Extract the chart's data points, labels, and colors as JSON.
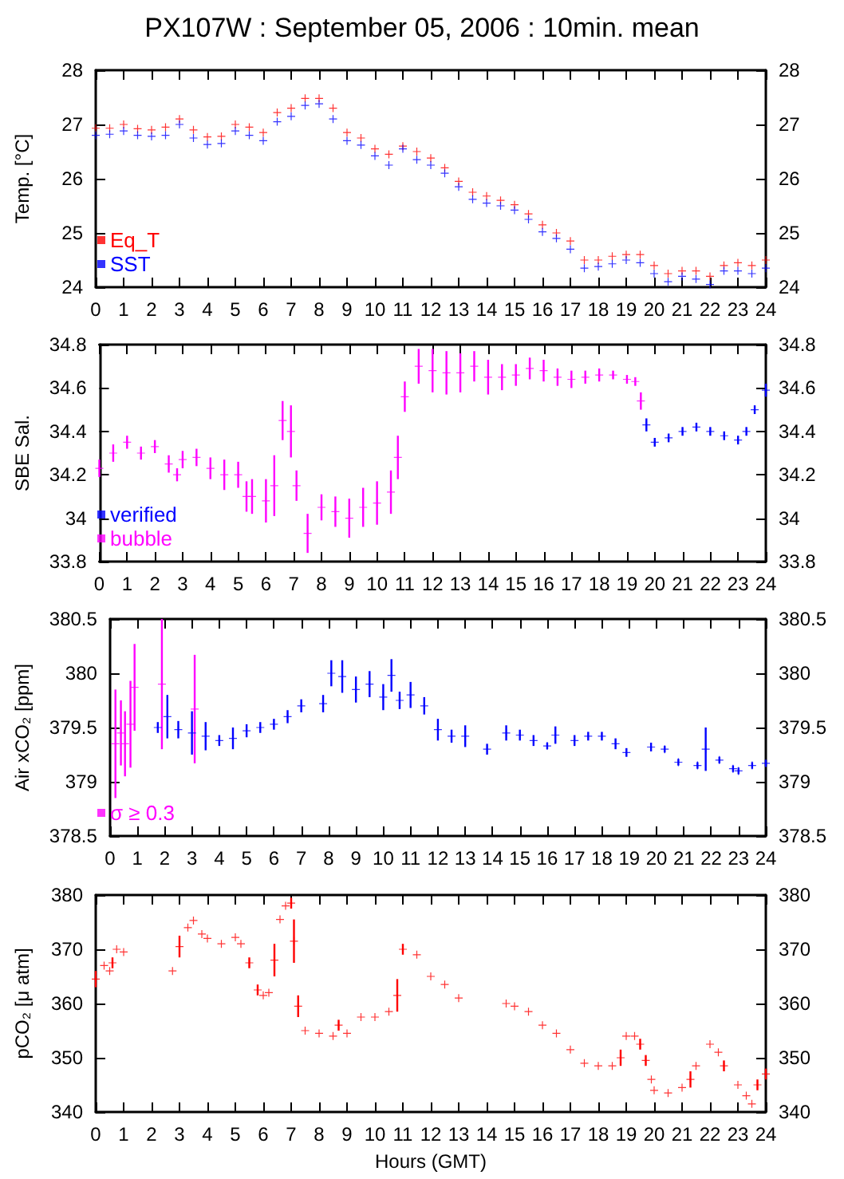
{
  "chart_data": [
    {
      "type": "scatter",
      "title": "PX107W : September 05, 2006 : 10min. mean",
      "ylabel": "Temp. [°C]",
      "marker": "cross",
      "legend": "bottom left",
      "xlim": [
        0,
        24
      ],
      "xticks": [
        0,
        1,
        2,
        3,
        4,
        5,
        6,
        7,
        8,
        9,
        10,
        11,
        12,
        13,
        14,
        15,
        16,
        17,
        18,
        19,
        20,
        21,
        22,
        23,
        24
      ],
      "ylim": [
        24,
        28
      ],
      "yticks": [
        24,
        25,
        26,
        27,
        28
      ],
      "y2lim": [
        24,
        28
      ],
      "y2ticks": [
        24,
        25,
        26,
        27,
        28
      ],
      "x": [
        0,
        0.5,
        1,
        1.5,
        2,
        2.5,
        3,
        3.5,
        4,
        4.5,
        5,
        5.5,
        6,
        6.5,
        7,
        7.5,
        8,
        8.5,
        9,
        9.5,
        10,
        10.5,
        11,
        11.5,
        12,
        12.5,
        13,
        13.5,
        14,
        14.5,
        15,
        15.5,
        16,
        16.5,
        17,
        17.5,
        18,
        18.5,
        19,
        19.5,
        20,
        20.5,
        21,
        21.5,
        22,
        22.5,
        23,
        23.5,
        24
      ],
      "series": [
        {
          "name": "Eq_T",
          "color": "#ff0000",
          "values": [
            26.93,
            26.93,
            27.0,
            26.92,
            26.9,
            26.95,
            27.1,
            26.9,
            26.77,
            26.78,
            27.0,
            26.95,
            26.85,
            27.22,
            27.3,
            27.48,
            27.48,
            27.3,
            26.85,
            26.75,
            26.55,
            26.45,
            26.6,
            26.5,
            26.38,
            26.2,
            25.95,
            25.75,
            25.68,
            25.6,
            25.52,
            25.35,
            25.15,
            25.0,
            24.85,
            24.5,
            24.5,
            24.57,
            24.6,
            24.6,
            24.4,
            24.25,
            24.3,
            24.3,
            24.2,
            24.4,
            24.45,
            24.4,
            24.5
          ]
        },
        {
          "name": "SST",
          "color": "#0000ff",
          "values": [
            26.8,
            26.82,
            26.88,
            26.8,
            26.78,
            26.8,
            27.0,
            26.75,
            26.63,
            26.65,
            26.88,
            26.8,
            26.7,
            27.05,
            27.15,
            27.35,
            27.38,
            27.1,
            26.7,
            26.62,
            26.42,
            26.25,
            26.55,
            26.35,
            26.25,
            26.1,
            25.85,
            25.62,
            25.55,
            25.5,
            25.42,
            25.25,
            25.02,
            24.9,
            24.7,
            24.35,
            24.38,
            24.43,
            24.5,
            24.45,
            24.25,
            24.1,
            24.2,
            24.15,
            24.05,
            24.3,
            24.3,
            24.25,
            24.35
          ]
        }
      ]
    },
    {
      "type": "scatter",
      "ylabel": "SBE Sal.",
      "marker": "cross",
      "legend": "bottom left",
      "xlim": [
        0,
        24
      ],
      "xticks": [
        0,
        1,
        2,
        3,
        4,
        5,
        6,
        7,
        8,
        9,
        10,
        11,
        12,
        13,
        14,
        15,
        16,
        17,
        18,
        19,
        20,
        21,
        22,
        23,
        24
      ],
      "ylim": [
        33.8,
        34.8
      ],
      "yticks": [
        33.8,
        34,
        34.2,
        34.4,
        34.6,
        34.8
      ],
      "y2lim": [
        33.8,
        34.8
      ],
      "y2ticks": [
        33.8,
        34,
        34.2,
        34.4,
        34.6,
        34.8
      ],
      "series": [
        {
          "name": "verified",
          "color": "#0000ff",
          "x": [
            19.7,
            20,
            20.5,
            21,
            21.5,
            22,
            22.5,
            23,
            23.3,
            23.6,
            24
          ],
          "values": [
            34.43,
            34.35,
            34.37,
            34.4,
            34.42,
            34.4,
            34.38,
            34.36,
            34.4,
            34.5,
            34.59
          ],
          "errors": [
            0.03,
            0.02,
            0.02,
            0.02,
            0.02,
            0.02,
            0.02,
            0.02,
            0.02,
            0.02,
            0.03
          ]
        },
        {
          "name": "bubble",
          "color": "#ff00ff",
          "x": [
            0,
            0.5,
            1,
            1.5,
            2,
            2.5,
            2.8,
            3,
            3.5,
            4,
            4.5,
            5,
            5.3,
            5.5,
            6,
            6.3,
            6.6,
            6.9,
            7.1,
            7.5,
            8,
            8.5,
            9,
            9.5,
            10,
            10.5,
            10.75,
            11,
            11.5,
            12,
            12.5,
            13,
            13.5,
            14,
            14.5,
            15,
            15.5,
            16,
            16.5,
            17,
            17.5,
            18,
            18.5,
            19,
            19.3,
            19.5
          ],
          "values": [
            34.23,
            34.3,
            34.35,
            34.3,
            34.33,
            34.25,
            34.2,
            34.27,
            34.28,
            34.23,
            34.2,
            34.2,
            34.1,
            34.1,
            34.08,
            34.15,
            34.45,
            34.4,
            34.15,
            33.93,
            34.05,
            34.03,
            34.0,
            34.05,
            34.07,
            34.12,
            34.28,
            34.56,
            34.7,
            34.68,
            34.67,
            34.67,
            34.7,
            34.65,
            34.65,
            34.66,
            34.69,
            34.68,
            34.65,
            34.64,
            34.65,
            34.66,
            34.66,
            34.64,
            34.63,
            34.54
          ],
          "errors": [
            0.04,
            0.04,
            0.03,
            0.03,
            0.03,
            0.04,
            0.03,
            0.04,
            0.04,
            0.05,
            0.07,
            0.06,
            0.07,
            0.08,
            0.1,
            0.14,
            0.09,
            0.12,
            0.07,
            0.09,
            0.06,
            0.07,
            0.09,
            0.09,
            0.1,
            0.1,
            0.1,
            0.07,
            0.08,
            0.1,
            0.1,
            0.09,
            0.07,
            0.08,
            0.06,
            0.05,
            0.05,
            0.05,
            0.04,
            0.04,
            0.03,
            0.03,
            0.02,
            0.02,
            0.02,
            0.04
          ]
        }
      ]
    },
    {
      "type": "scatter",
      "ylabel": "Air xCO₂ [ppm]",
      "marker": "cross",
      "legend": "bottom left",
      "xlim": [
        0,
        24
      ],
      "xticks": [
        0,
        1,
        2,
        3,
        4,
        5,
        6,
        7,
        8,
        9,
        10,
        11,
        12,
        13,
        14,
        15,
        16,
        17,
        18,
        19,
        20,
        21,
        22,
        23,
        24
      ],
      "ylim": [
        378.5,
        380.5
      ],
      "yticks": [
        378.5,
        379,
        379.5,
        380,
        380.5
      ],
      "y2lim": [
        378.5,
        380.5
      ],
      "y2ticks": [
        378.5,
        379,
        379.5,
        380,
        380.5
      ],
      "series": [
        {
          "color": "#0000ff",
          "x": [
            1.75,
            2.1,
            2.5,
            3,
            3.5,
            4,
            4.5,
            5,
            5.5,
            6,
            6.5,
            7,
            7.8,
            8.1,
            8.5,
            9,
            9.5,
            10,
            10.3,
            10.6,
            11,
            11.5,
            12,
            12.5,
            13,
            13.8,
            14.5,
            15,
            15.5,
            16,
            16.3,
            17,
            17.5,
            18,
            18.5,
            18.9,
            19.8,
            20.3,
            20.8,
            21.5,
            21.8,
            22.3,
            22.8,
            23,
            23.5,
            24
          ],
          "values": [
            379.5,
            379.6,
            379.48,
            379.45,
            379.42,
            379.38,
            379.4,
            379.47,
            379.5,
            379.53,
            379.6,
            379.7,
            379.72,
            380.0,
            379.97,
            379.85,
            379.9,
            379.78,
            379.98,
            379.75,
            379.8,
            379.7,
            379.48,
            379.42,
            379.42,
            379.3,
            379.45,
            379.43,
            379.38,
            379.33,
            379.43,
            379.38,
            379.42,
            379.42,
            379.35,
            379.27,
            379.32,
            379.3,
            379.18,
            379.15,
            379.3,
            379.2,
            379.12,
            379.1,
            379.15,
            379.17
          ],
          "errors": [
            0.05,
            0.2,
            0.08,
            0.2,
            0.13,
            0.05,
            0.1,
            0.06,
            0.05,
            0.05,
            0.06,
            0.06,
            0.08,
            0.12,
            0.15,
            0.12,
            0.12,
            0.12,
            0.15,
            0.08,
            0.12,
            0.08,
            0.1,
            0.06,
            0.1,
            0.05,
            0.07,
            0.05,
            0.05,
            0.03,
            0.08,
            0.05,
            0.04,
            0.04,
            0.05,
            0.04,
            0.04,
            0.03,
            0.03,
            0.03,
            0.2,
            0.03,
            0.03,
            0.03,
            0.03,
            0.03
          ]
        },
        {
          "name": "σ ≥ 0.3",
          "color": "#ff00ff",
          "x": [
            0.2,
            0.4,
            0.55,
            0.75,
            0.9,
            1.9,
            3.1
          ],
          "values": [
            379.35,
            379.45,
            379.35,
            379.53,
            379.87,
            379.9,
            379.67
          ],
          "errors": [
            0.5,
            0.3,
            0.3,
            0.4,
            0.4,
            0.6,
            0.5
          ]
        }
      ]
    },
    {
      "type": "scatter",
      "ylabel": "pCO₂ [μ atm]",
      "xlabel": "Hours (GMT)",
      "marker": "cross",
      "xlim": [
        0,
        24
      ],
      "xticks": [
        0,
        1,
        2,
        3,
        4,
        5,
        6,
        7,
        8,
        9,
        10,
        11,
        12,
        13,
        14,
        15,
        16,
        17,
        18,
        19,
        20,
        21,
        22,
        23,
        24
      ],
      "ylim": [
        340,
        380
      ],
      "yticks": [
        340,
        350,
        360,
        370,
        380
      ],
      "y2lim": [
        340,
        380
      ],
      "y2ticks": [
        340,
        350,
        360,
        370,
        380
      ],
      "series": [
        {
          "color": "#ff0000",
          "x": [
            0,
            0.3,
            0.5,
            0.6,
            0.75,
            1,
            2.75,
            3,
            3.3,
            3.5,
            3.8,
            4,
            4.5,
            5,
            5.2,
            5.5,
            5.8,
            6,
            6.2,
            6.4,
            6.6,
            6.8,
            7,
            7.1,
            7.25,
            7.5,
            8,
            8.5,
            8.7,
            9,
            9.5,
            10,
            10.5,
            10.8,
            11,
            11.5,
            12,
            12.5,
            13,
            14.7,
            15,
            15.5,
            16,
            16.5,
            17,
            17.5,
            18,
            18.5,
            18.8,
            19,
            19.3,
            19.5,
            19.7,
            19.9,
            20,
            20.5,
            21,
            21.3,
            21.5,
            22,
            22.3,
            22.5,
            23,
            23.3,
            23.5,
            23.7,
            24
          ],
          "values": [
            364.5,
            367,
            366,
            367.5,
            370,
            369.5,
            366,
            370.5,
            374,
            375.3,
            372.8,
            372,
            371,
            372.2,
            371,
            367.5,
            362.5,
            361.5,
            362,
            368,
            375.5,
            378,
            378.5,
            371.5,
            359.5,
            355,
            354.5,
            354,
            356,
            354.5,
            357.5,
            357.5,
            358.5,
            361.5,
            370,
            369,
            365,
            363.5,
            361,
            360,
            359.5,
            358.5,
            356,
            354.5,
            351.5,
            349,
            348.5,
            348.5,
            350,
            354,
            354,
            352.5,
            349.5,
            346,
            344,
            343.5,
            344.5,
            346,
            348.5,
            352.5,
            351,
            348.5,
            345,
            343,
            341.5,
            345,
            347
          ],
          "errors": [
            1.5,
            null,
            null,
            1,
            null,
            null,
            null,
            2,
            null,
            null,
            null,
            null,
            null,
            null,
            null,
            1,
            1,
            null,
            null,
            3,
            null,
            null,
            1,
            4,
            2,
            null,
            null,
            null,
            1,
            null,
            null,
            null,
            null,
            3,
            1,
            null,
            null,
            null,
            null,
            null,
            null,
            null,
            null,
            null,
            null,
            null,
            null,
            null,
            1.5,
            null,
            null,
            1,
            1,
            null,
            null,
            null,
            null,
            1.5,
            null,
            null,
            null,
            1,
            null,
            null,
            null,
            1,
            1
          ]
        }
      ]
    }
  ]
}
